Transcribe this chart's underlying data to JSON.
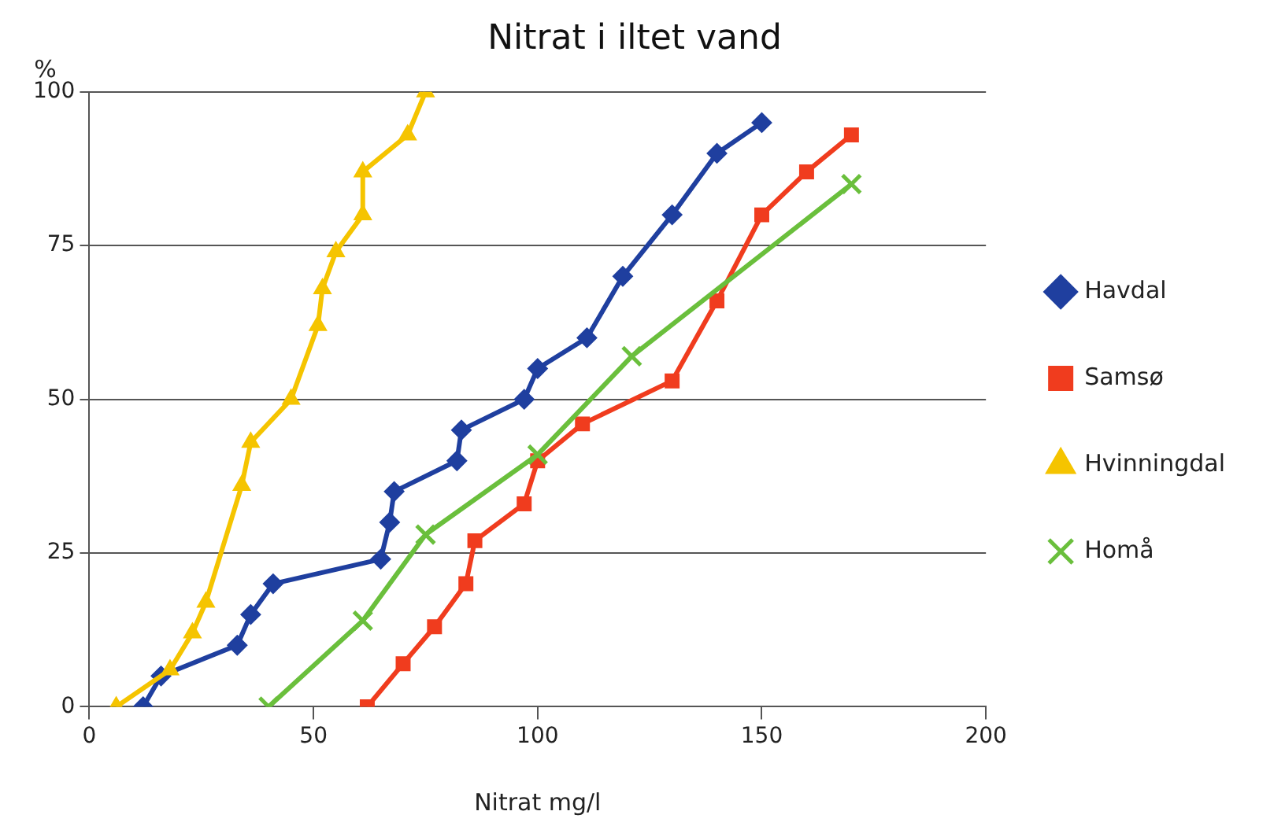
{
  "chart_data": {
    "type": "line",
    "title": "Nitrat i iltet vand",
    "xlabel": "Nitrat mg/l",
    "ylabel": "%",
    "xlim": [
      0,
      200
    ],
    "xticks": [
      0,
      50,
      100,
      150,
      200
    ],
    "ylim": [
      0,
      100
    ],
    "yticks": [
      0,
      25,
      50,
      75,
      100
    ],
    "grid": "y",
    "legend": "right",
    "line_style": "solid",
    "series": [
      {
        "name": "Havdal",
        "color": "#1f3f9f",
        "marker": "diamond",
        "x": [
          12,
          16,
          33,
          36,
          41,
          65,
          67,
          68,
          82,
          83,
          97,
          100,
          111,
          119,
          130,
          140,
          150
        ],
        "values": [
          0,
          5,
          10,
          15,
          20,
          24,
          30,
          35,
          40,
          45,
          50,
          55,
          60,
          70,
          80,
          90,
          95
        ]
      },
      {
        "name": "Samsø",
        "color": "#f03c1e",
        "marker": "square",
        "x": [
          62,
          70,
          77,
          84,
          86,
          97,
          100,
          110,
          130,
          140,
          150,
          160,
          170
        ],
        "values": [
          0,
          7,
          13,
          20,
          27,
          33,
          40,
          46,
          53,
          66,
          80,
          87,
          93
        ]
      },
      {
        "name": "Hvinningdal",
        "color": "#f5c400",
        "marker": "triangle",
        "x": [
          6,
          18,
          23,
          26,
          34,
          36,
          45,
          51,
          52,
          55,
          61,
          61,
          71,
          75
        ],
        "values": [
          0,
          6,
          12,
          17,
          36,
          43,
          50,
          62,
          68,
          74,
          80,
          87,
          93,
          100
        ]
      },
      {
        "name": "Homå",
        "color": "#6abf3c",
        "marker": "cross",
        "x": [
          40,
          61,
          75,
          100,
          121,
          170
        ],
        "values": [
          0,
          14,
          28,
          41,
          57,
          85
        ]
      }
    ]
  }
}
